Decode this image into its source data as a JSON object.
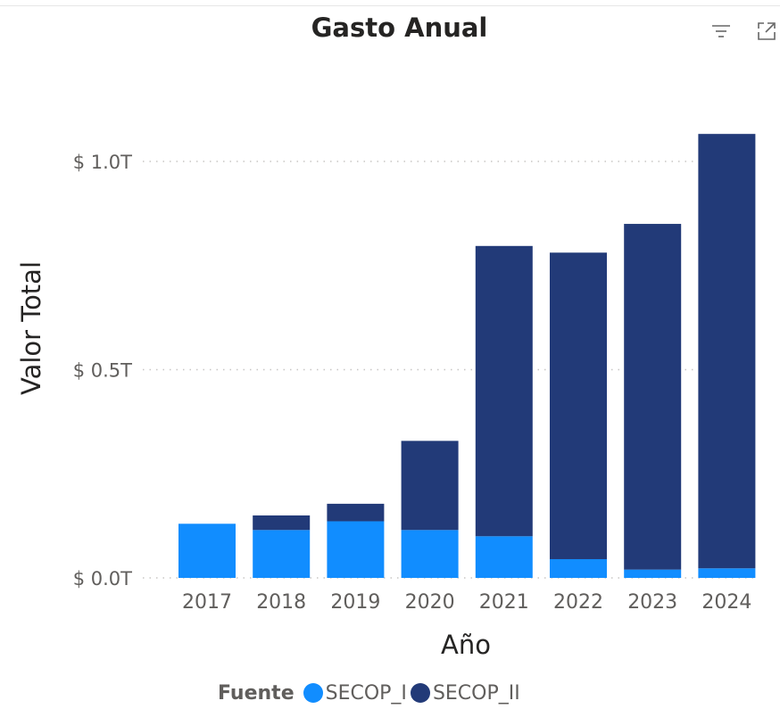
{
  "visual": {
    "title": "Gasto Anual",
    "filter_icon": "filter-icon",
    "focus_icon": "focus-mode-icon"
  },
  "legend": {
    "title": "Fuente",
    "items": [
      {
        "label": "SECOP_I",
        "color": "#118DFF"
      },
      {
        "label": "SECOP_II",
        "color": "#223A78"
      }
    ]
  },
  "chart_data": {
    "type": "bar",
    "stacked": true,
    "xlabel": "Año",
    "ylabel": "Valor Total",
    "categories": [
      "2017",
      "2018",
      "2019",
      "2020",
      "2021",
      "2022",
      "2023",
      "2024"
    ],
    "series": [
      {
        "name": "SECOP_I",
        "color": "#118DFF",
        "values": [
          0.13,
          0.115,
          0.136,
          0.115,
          0.1,
          0.045,
          0.02,
          0.023
        ]
      },
      {
        "name": "SECOP_II",
        "color": "#223A78",
        "values": [
          0.0,
          0.035,
          0.042,
          0.214,
          0.697,
          0.736,
          0.83,
          1.043
        ]
      }
    ],
    "ylim": [
      0,
      1.1
    ],
    "yticks": [
      0,
      0.5,
      1.0
    ],
    "ytick_labels": [
      "$ 0.0T",
      "$ 0.5T",
      "$ 1.0T"
    ],
    "grid": true,
    "legend_position": "bottom-center"
  }
}
